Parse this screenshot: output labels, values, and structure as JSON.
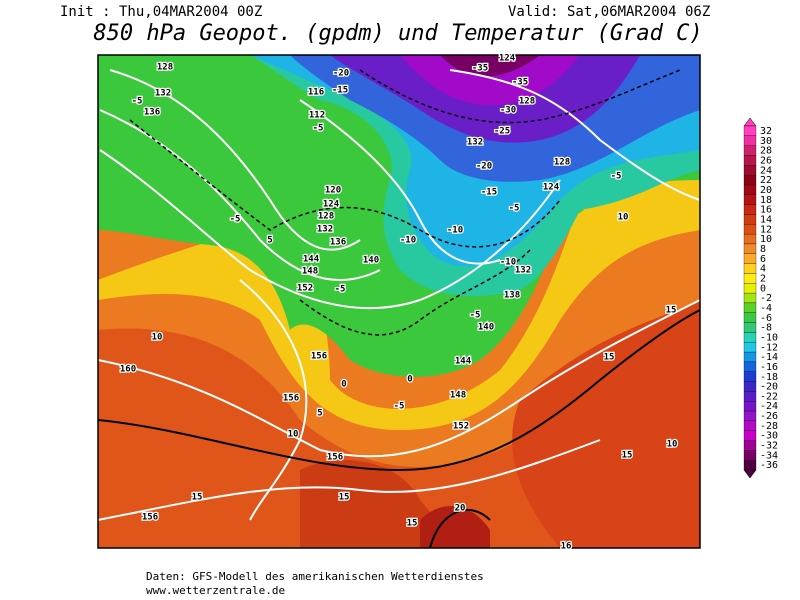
{
  "header": {
    "init": "Init : Thu,04MAR2004 00Z",
    "valid": "Valid: Sat,06MAR2004 06Z",
    "title": "850 hPa Geopot. (gpdm) und Temperatur (Grad C)"
  },
  "map": {
    "contour_labels": [
      "128",
      "132",
      "-5",
      "136",
      "116",
      "-15",
      "-20",
      "112",
      "-5",
      "-35",
      "124",
      "-35",
      "-30",
      "128",
      "-25",
      "132",
      "-20",
      "-15",
      "-5",
      "128",
      "124",
      "-5",
      "10",
      "120",
      "124",
      "-5",
      "128",
      "132",
      "5",
      "136",
      "144",
      "148",
      "140",
      "-10",
      "-10",
      "-10",
      "132",
      "152",
      "-5",
      "138",
      "-5",
      "140",
      "10",
      "156",
      "0",
      "0",
      "144",
      "148",
      "-5",
      "156",
      "5",
      "152",
      "160",
      "10",
      "156",
      "15",
      "15",
      "10",
      "15",
      "15",
      "156",
      "15",
      "20",
      "15",
      "16"
    ]
  },
  "colorbar": {
    "labels": [
      32,
      30,
      28,
      26,
      24,
      22,
      20,
      18,
      16,
      14,
      12,
      10,
      8,
      6,
      4,
      2,
      0,
      -2,
      -4,
      -6,
      -8,
      -10,
      -12,
      -14,
      -16,
      -18,
      -20,
      -22,
      -24,
      -26,
      -28,
      -30,
      -32,
      -34,
      -36
    ],
    "colors": [
      "#ff40c0",
      "#f030a0",
      "#d02070",
      "#b81450",
      "#a00a30",
      "#8c0018",
      "#a00818",
      "#b41414",
      "#c82814",
      "#d23c14",
      "#dc5014",
      "#e66e1e",
      "#f08c28",
      "#faaa28",
      "#ffd21e",
      "#ffeb14",
      "#e6f000",
      "#a0e614",
      "#5ad228",
      "#3cc846",
      "#32c878",
      "#28d2b4",
      "#1ec8e6",
      "#1496e6",
      "#1464dc",
      "#1e3cd2",
      "#3c28c8",
      "#5a1ec8",
      "#7814c8",
      "#9614c8",
      "#b40ac8",
      "#c800c8",
      "#a00096",
      "#780064",
      "#500040"
    ]
  },
  "footer": {
    "source": "Daten: GFS-Modell des amerikanischen Wetterdienstes",
    "site": "www.wetterzentrale.de"
  }
}
